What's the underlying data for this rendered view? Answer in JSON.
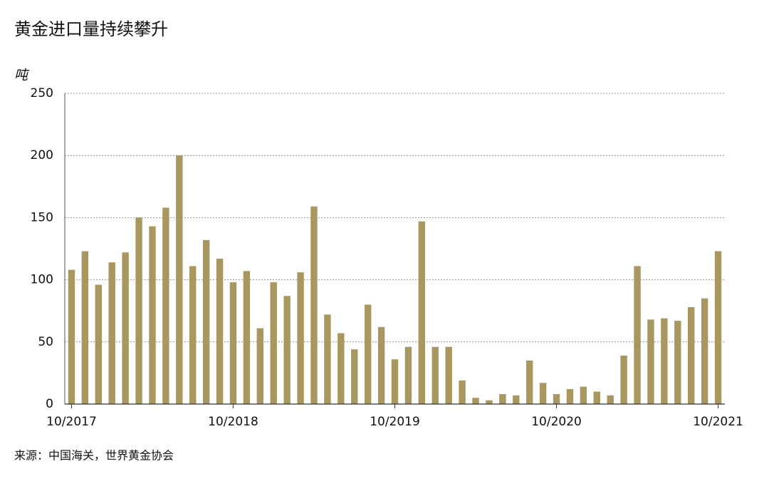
{
  "chart_data": {
    "type": "bar",
    "title": "黄金进口量持续攀升",
    "y_label": "吨",
    "source": "来源：中国海关，世界黄金协会",
    "categories": [
      "10/2017",
      null,
      null,
      null,
      null,
      null,
      null,
      null,
      null,
      null,
      null,
      null,
      "10/2018",
      null,
      null,
      null,
      null,
      null,
      null,
      null,
      null,
      null,
      null,
      null,
      "10/2019",
      null,
      null,
      null,
      null,
      null,
      null,
      null,
      null,
      null,
      null,
      null,
      "10/2020",
      null,
      null,
      null,
      null,
      null,
      null,
      null,
      null,
      null,
      null,
      null,
      "10/2021"
    ],
    "values": [
      108,
      123,
      96,
      114,
      122,
      150,
      143,
      158,
      200,
      111,
      132,
      117,
      98,
      107,
      61,
      98,
      87,
      106,
      159,
      72,
      57,
      44,
      80,
      62,
      36,
      46,
      147,
      46,
      46,
      19,
      5,
      3,
      8,
      7,
      35,
      17,
      8,
      12,
      14,
      10,
      7,
      39,
      111,
      68,
      69,
      67,
      78,
      85,
      123
    ],
    "color": "#a8975f",
    "ylim": [
      0,
      250
    ],
    "yticks": [
      0,
      50,
      100,
      150,
      200,
      250
    ],
    "grid": true
  }
}
